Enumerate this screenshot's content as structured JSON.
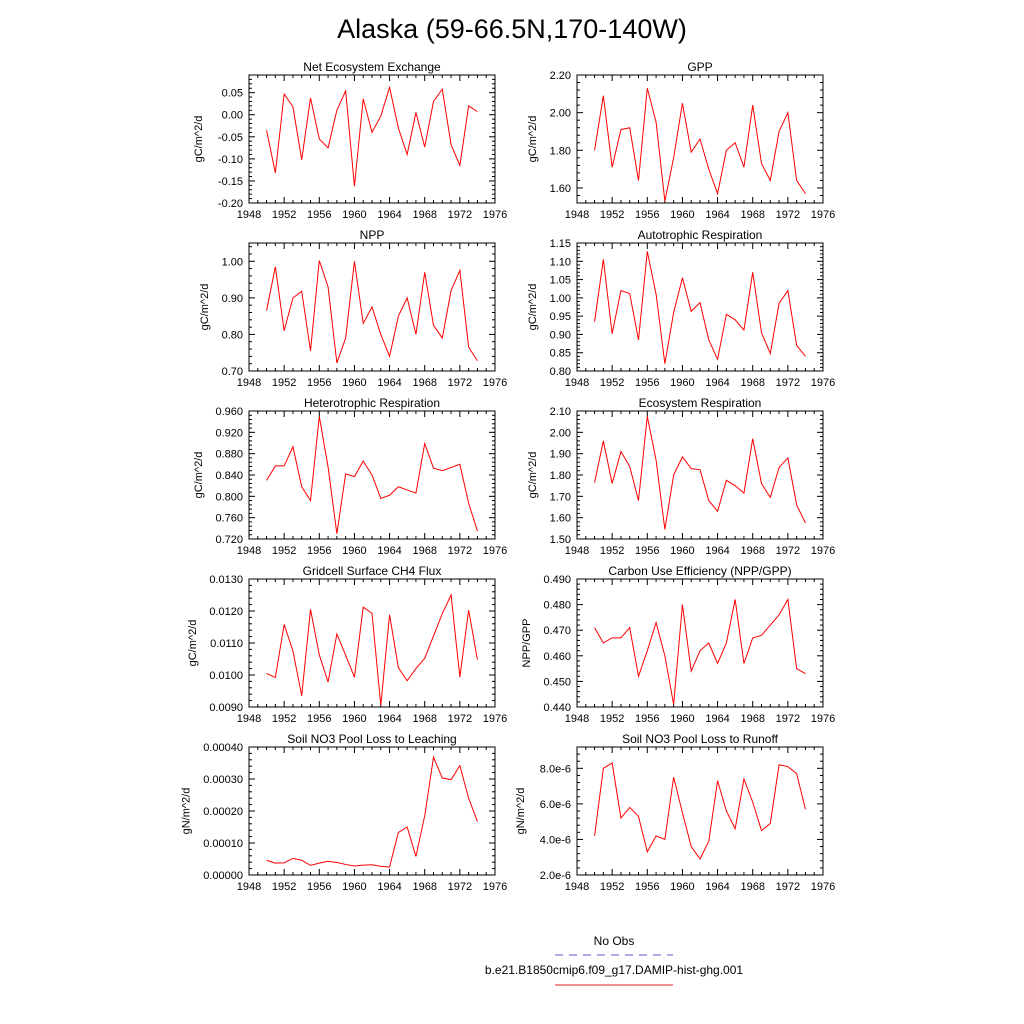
{
  "page": {
    "title": "Alaska (59-66.5N,170-140W)"
  },
  "legend": {
    "entries": [
      {
        "label": "No Obs",
        "color": "#5a5ad6",
        "dash": true
      },
      {
        "label": "b.e21.B1850cmip6.f09_g17.DAMIP-hist-ghg.001",
        "color": "#e02020",
        "dash": false
      }
    ]
  },
  "chart_data": [
    {
      "type": "line",
      "title": "Net Ecosystem Exchange",
      "ylabel": "gC/m^2/d",
      "xlim": [
        1948,
        1976
      ],
      "xticks": [
        1948,
        1952,
        1956,
        1960,
        1964,
        1968,
        1972,
        1976
      ],
      "xtick_labels": [
        "1948",
        "1952",
        "1956",
        "1960",
        "1964",
        "1968",
        "1972",
        "1976"
      ],
      "ylim": [
        -0.2,
        0.09
      ],
      "yticks": [
        -0.2,
        -0.15,
        -0.1,
        -0.05,
        0.0,
        0.05
      ],
      "ytick_labels": [
        "-0.20",
        "-0.15",
        "-0.10",
        "-0.05",
        "0.00",
        "0.05"
      ],
      "series": [
        {
          "color": "#ff0000",
          "x": [
            1950,
            1951,
            1952,
            1953,
            1954,
            1955,
            1956,
            1957,
            1958,
            1959,
            1960,
            1961,
            1962,
            1963,
            1964,
            1965,
            1966,
            1967,
            1968,
            1969,
            1970,
            1971,
            1972,
            1973,
            1974
          ],
          "y": [
            -0.035,
            -0.132,
            0.047,
            0.018,
            -0.102,
            0.038,
            -0.055,
            -0.075,
            0.01,
            0.054,
            -0.162,
            0.036,
            -0.04,
            -0.003,
            0.062,
            -0.03,
            -0.09,
            0.005,
            -0.073,
            0.03,
            0.058,
            -0.068,
            -0.115,
            0.02,
            0.007
          ]
        }
      ]
    },
    {
      "type": "line",
      "title": "GPP",
      "ylabel": "gC/m^2/d",
      "xlim": [
        1948,
        1976
      ],
      "xticks": [
        1948,
        1952,
        1956,
        1960,
        1964,
        1968,
        1972,
        1976
      ],
      "xtick_labels": [
        "1948",
        "1952",
        "1956",
        "1960",
        "1964",
        "1968",
        "1972",
        "1976"
      ],
      "ylim": [
        1.52,
        2.2
      ],
      "yticks": [
        1.6,
        1.8,
        2.0,
        2.2
      ],
      "ytick_labels": [
        "1.60",
        "1.80",
        "2.00",
        "2.20"
      ],
      "series": [
        {
          "color": "#ff0000",
          "x": [
            1950,
            1951,
            1952,
            1953,
            1954,
            1955,
            1956,
            1957,
            1958,
            1959,
            1960,
            1961,
            1962,
            1963,
            1964,
            1965,
            1966,
            1967,
            1968,
            1969,
            1970,
            1971,
            1972,
            1973,
            1974
          ],
          "y": [
            1.8,
            2.09,
            1.71,
            1.91,
            1.92,
            1.64,
            2.13,
            1.95,
            1.53,
            1.76,
            2.05,
            1.79,
            1.86,
            1.7,
            1.57,
            1.8,
            1.84,
            1.71,
            2.04,
            1.73,
            1.64,
            1.9,
            2.0,
            1.64,
            1.57
          ]
        }
      ]
    },
    {
      "type": "line",
      "title": "NPP",
      "ylabel": "gC/m^2/d",
      "xlim": [
        1948,
        1976
      ],
      "xticks": [
        1948,
        1952,
        1956,
        1960,
        1964,
        1968,
        1972,
        1976
      ],
      "xtick_labels": [
        "1948",
        "1952",
        "1956",
        "1960",
        "1964",
        "1968",
        "1972",
        "1976"
      ],
      "ylim": [
        0.7,
        1.05
      ],
      "yticks": [
        0.7,
        0.8,
        0.9,
        1.0
      ],
      "ytick_labels": [
        "0.70",
        "0.80",
        "0.90",
        "1.00"
      ],
      "series": [
        {
          "color": "#ff0000",
          "x": [
            1950,
            1951,
            1952,
            1953,
            1954,
            1955,
            1956,
            1957,
            1958,
            1959,
            1960,
            1961,
            1962,
            1963,
            1964,
            1965,
            1966,
            1967,
            1968,
            1969,
            1970,
            1971,
            1972,
            1973,
            1974
          ],
          "y": [
            0.865,
            0.985,
            0.81,
            0.9,
            0.918,
            0.755,
            1.002,
            0.93,
            0.722,
            0.79,
            1.0,
            0.83,
            0.875,
            0.8,
            0.74,
            0.85,
            0.9,
            0.8,
            0.97,
            0.825,
            0.79,
            0.92,
            0.975,
            0.765,
            0.728
          ]
        }
      ]
    },
    {
      "type": "line",
      "title": "Autotrophic Respiration",
      "ylabel": "gC/m^2/d",
      "xlim": [
        1948,
        1976
      ],
      "xticks": [
        1948,
        1952,
        1956,
        1960,
        1964,
        1968,
        1972,
        1976
      ],
      "xtick_labels": [
        "1948",
        "1952",
        "1956",
        "1960",
        "1964",
        "1968",
        "1972",
        "1976"
      ],
      "ylim": [
        0.8,
        1.15
      ],
      "yticks": [
        0.8,
        0.85,
        0.9,
        0.95,
        1.0,
        1.05,
        1.1,
        1.15
      ],
      "ytick_labels": [
        "0.80",
        "0.85",
        "0.90",
        "0.95",
        "1.00",
        "1.05",
        "1.10",
        "1.15"
      ],
      "series": [
        {
          "color": "#ff0000",
          "x": [
            1950,
            1951,
            1952,
            1953,
            1954,
            1955,
            1956,
            1957,
            1958,
            1959,
            1960,
            1961,
            1962,
            1963,
            1964,
            1965,
            1966,
            1967,
            1968,
            1969,
            1970,
            1971,
            1972,
            1973,
            1974
          ],
          "y": [
            0.935,
            1.105,
            0.902,
            1.02,
            1.012,
            0.885,
            1.127,
            1.01,
            0.82,
            0.96,
            1.055,
            0.963,
            0.987,
            0.885,
            0.832,
            0.955,
            0.94,
            0.912,
            1.07,
            0.905,
            0.848,
            0.985,
            1.02,
            0.87,
            0.84
          ]
        }
      ]
    },
    {
      "type": "line",
      "title": "Heterotrophic Respiration",
      "ylabel": "gC/m^2/d",
      "xlim": [
        1948,
        1976
      ],
      "xticks": [
        1948,
        1952,
        1956,
        1960,
        1964,
        1968,
        1972,
        1976
      ],
      "xtick_labels": [
        "1948",
        "1952",
        "1956",
        "1960",
        "1964",
        "1968",
        "1972",
        "1976"
      ],
      "ylim": [
        0.72,
        0.96
      ],
      "yticks": [
        0.72,
        0.76,
        0.8,
        0.84,
        0.88,
        0.92,
        0.96
      ],
      "ytick_labels": [
        "0.720",
        "0.760",
        "0.800",
        "0.840",
        "0.880",
        "0.920",
        "0.960"
      ],
      "series": [
        {
          "color": "#ff0000",
          "x": [
            1950,
            1951,
            1952,
            1953,
            1954,
            1955,
            1956,
            1957,
            1958,
            1959,
            1960,
            1961,
            1962,
            1963,
            1964,
            1965,
            1966,
            1967,
            1968,
            1969,
            1970,
            1971,
            1972,
            1973,
            1974
          ],
          "y": [
            0.83,
            0.857,
            0.857,
            0.893,
            0.818,
            0.792,
            0.95,
            0.855,
            0.73,
            0.842,
            0.837,
            0.866,
            0.84,
            0.796,
            0.802,
            0.818,
            0.812,
            0.806,
            0.899,
            0.853,
            0.848,
            0.854,
            0.86,
            0.787,
            0.735
          ]
        }
      ]
    },
    {
      "type": "line",
      "title": "Ecosystem Respiration",
      "ylabel": "gC/m^2/d",
      "xlim": [
        1948,
        1976
      ],
      "xticks": [
        1948,
        1952,
        1956,
        1960,
        1964,
        1968,
        1972,
        1976
      ],
      "xtick_labels": [
        "1948",
        "1952",
        "1956",
        "1960",
        "1964",
        "1968",
        "1972",
        "1976"
      ],
      "ylim": [
        1.5,
        2.1
      ],
      "yticks": [
        1.5,
        1.6,
        1.7,
        1.8,
        1.9,
        2.0,
        2.1
      ],
      "ytick_labels": [
        "1.50",
        "1.60",
        "1.70",
        "1.80",
        "1.90",
        "2.00",
        "2.10"
      ],
      "series": [
        {
          "color": "#ff0000",
          "x": [
            1950,
            1951,
            1952,
            1953,
            1954,
            1955,
            1956,
            1957,
            1958,
            1959,
            1960,
            1961,
            1962,
            1963,
            1964,
            1965,
            1966,
            1967,
            1968,
            1969,
            1970,
            1971,
            1972,
            1973,
            1974
          ],
          "y": [
            1.765,
            1.96,
            1.76,
            1.91,
            1.84,
            1.68,
            2.075,
            1.87,
            1.545,
            1.8,
            1.885,
            1.83,
            1.825,
            1.68,
            1.63,
            1.775,
            1.75,
            1.715,
            1.97,
            1.76,
            1.695,
            1.835,
            1.88,
            1.66,
            1.575
          ]
        }
      ]
    },
    {
      "type": "line",
      "title": "Gridcell Surface CH4 Flux",
      "ylabel": "gC/m^2/d",
      "xlim": [
        1948,
        1976
      ],
      "xticks": [
        1948,
        1952,
        1956,
        1960,
        1964,
        1968,
        1972,
        1976
      ],
      "xtick_labels": [
        "1948",
        "1952",
        "1956",
        "1960",
        "1964",
        "1968",
        "1972",
        "1976"
      ],
      "ylim": [
        0.009,
        0.013
      ],
      "yticks": [
        0.009,
        0.01,
        0.011,
        0.012,
        0.013
      ],
      "ytick_labels": [
        "0.0090",
        "0.0100",
        "0.0110",
        "0.0120",
        "0.0130"
      ],
      "series": [
        {
          "color": "#ff0000",
          "x": [
            1950,
            1951,
            1952,
            1953,
            1954,
            1955,
            1956,
            1957,
            1958,
            1959,
            1960,
            1961,
            1962,
            1963,
            1964,
            1965,
            1966,
            1967,
            1968,
            1969,
            1970,
            1971,
            1972,
            1973,
            1974
          ],
          "y": [
            0.01005,
            0.00992,
            0.01158,
            0.01075,
            0.00935,
            0.01205,
            0.01063,
            0.00978,
            0.01128,
            0.01062,
            0.00993,
            0.01212,
            0.01193,
            0.00905,
            0.01188,
            0.01023,
            0.00982,
            0.0102,
            0.01052,
            0.01122,
            0.01192,
            0.0125,
            0.00993,
            0.01203,
            0.01048
          ]
        }
      ]
    },
    {
      "type": "line",
      "title": "Carbon Use Efficiency (NPP/GPP)",
      "ylabel": "NPP/GPP",
      "xlim": [
        1948,
        1976
      ],
      "xticks": [
        1948,
        1952,
        1956,
        1960,
        1964,
        1968,
        1972,
        1976
      ],
      "xtick_labels": [
        "1948",
        "1952",
        "1956",
        "1960",
        "1964",
        "1968",
        "1972",
        "1976"
      ],
      "ylim": [
        0.44,
        0.49
      ],
      "yticks": [
        0.44,
        0.45,
        0.46,
        0.47,
        0.48,
        0.49
      ],
      "ytick_labels": [
        "0.440",
        "0.450",
        "0.460",
        "0.470",
        "0.480",
        "0.490"
      ],
      "series": [
        {
          "color": "#ff0000",
          "x": [
            1950,
            1951,
            1952,
            1953,
            1954,
            1955,
            1956,
            1957,
            1958,
            1959,
            1960,
            1961,
            1962,
            1963,
            1964,
            1965,
            1966,
            1967,
            1968,
            1969,
            1970,
            1971,
            1972,
            1973,
            1974
          ],
          "y": [
            0.471,
            0.465,
            0.467,
            0.467,
            0.471,
            0.452,
            0.462,
            0.473,
            0.46,
            0.441,
            0.48,
            0.454,
            0.462,
            0.465,
            0.457,
            0.465,
            0.482,
            0.457,
            0.467,
            0.468,
            0.472,
            0.476,
            0.482,
            0.455,
            0.453
          ]
        }
      ]
    },
    {
      "type": "line",
      "title": "Soil NO3 Pool Loss to Leaching",
      "ylabel": "gN/m^2/d",
      "xlim": [
        1948,
        1976
      ],
      "xticks": [
        1948,
        1952,
        1956,
        1960,
        1964,
        1968,
        1972,
        1976
      ],
      "xtick_labels": [
        "1948",
        "1952",
        "1956",
        "1960",
        "1964",
        "1968",
        "1972",
        "1976"
      ],
      "ylim": [
        0.0,
        0.0004
      ],
      "yticks": [
        0.0,
        0.0001,
        0.0002,
        0.0003,
        0.0004
      ],
      "ytick_labels": [
        "0.00000",
        "0.00010",
        "0.00020",
        "0.00030",
        "0.00040"
      ],
      "series": [
        {
          "color": "#ff0000",
          "x": [
            1950,
            1951,
            1952,
            1953,
            1954,
            1955,
            1956,
            1957,
            1958,
            1959,
            1960,
            1961,
            1962,
            1963,
            1964,
            1965,
            1966,
            1967,
            1968,
            1969,
            1970,
            1971,
            1972,
            1973,
            1974
          ],
          "y": [
            4.6e-05,
            3.7e-05,
            3.8e-05,
            5.2e-05,
            4.6e-05,
            3e-05,
            3.7e-05,
            4.3e-05,
            3.9e-05,
            3.3e-05,
            2.8e-05,
            3.1e-05,
            3.2e-05,
            2.7e-05,
            2.5e-05,
            0.000133,
            0.00015,
            5.8e-05,
            0.000185,
            0.000368,
            0.000303,
            0.000298,
            0.000342,
            0.00024,
            0.000167
          ]
        }
      ]
    },
    {
      "type": "line",
      "title": "Soil NO3 Pool Loss to Runoff",
      "ylabel": "gN/m^2/d",
      "xlim": [
        1948,
        1976
      ],
      "xticks": [
        1948,
        1952,
        1956,
        1960,
        1964,
        1968,
        1972,
        1976
      ],
      "xtick_labels": [
        "1948",
        "1952",
        "1956",
        "1960",
        "1964",
        "1968",
        "1972",
        "1976"
      ],
      "ylim": [
        2e-06,
        9.2e-06
      ],
      "yticks": [
        2e-06,
        4e-06,
        6e-06,
        8e-06
      ],
      "ytick_labels": [
        "2.0e-6",
        "4.0e-6",
        "6.0e-6",
        "8.0e-6"
      ],
      "series": [
        {
          "color": "#ff0000",
          "x": [
            1950,
            1951,
            1952,
            1953,
            1954,
            1955,
            1956,
            1957,
            1958,
            1959,
            1960,
            1961,
            1962,
            1963,
            1964,
            1965,
            1966,
            1967,
            1968,
            1969,
            1970,
            1971,
            1972,
            1973,
            1974
          ],
          "y": [
            4.2e-06,
            8e-06,
            8.3e-06,
            5.2e-06,
            5.8e-06,
            5.3e-06,
            3.3e-06,
            4.2e-06,
            4e-06,
            7.5e-06,
            5.5e-06,
            3.6e-06,
            2.9e-06,
            3.9e-06,
            7.3e-06,
            5.6e-06,
            4.6e-06,
            7.4e-06,
            6.1e-06,
            4.5e-06,
            4.9e-06,
            8.2e-06,
            8.1e-06,
            7.7e-06,
            5.7e-06
          ]
        }
      ]
    }
  ]
}
